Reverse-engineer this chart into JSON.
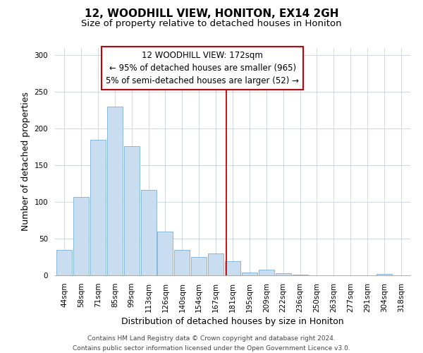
{
  "title": "12, WOODHILL VIEW, HONITON, EX14 2GH",
  "subtitle": "Size of property relative to detached houses in Honiton",
  "xlabel": "Distribution of detached houses by size in Honiton",
  "ylabel": "Number of detached properties",
  "bar_color": "#c8ddf0",
  "bar_edge_color": "#7ab0d4",
  "categories": [
    "44sqm",
    "58sqm",
    "71sqm",
    "85sqm",
    "99sqm",
    "113sqm",
    "126sqm",
    "140sqm",
    "154sqm",
    "167sqm",
    "181sqm",
    "195sqm",
    "209sqm",
    "222sqm",
    "236sqm",
    "250sqm",
    "263sqm",
    "277sqm",
    "291sqm",
    "304sqm",
    "318sqm"
  ],
  "values": [
    35,
    107,
    185,
    230,
    176,
    116,
    60,
    35,
    25,
    30,
    19,
    4,
    8,
    3,
    1,
    0,
    0,
    0,
    0,
    2,
    0
  ],
  "ylim": [
    0,
    310
  ],
  "yticks": [
    0,
    50,
    100,
    150,
    200,
    250,
    300
  ],
  "vline_x": 9.62,
  "vline_color": "#cc0000",
  "ann_line1": "12 WOODHILL VIEW: 172sqm",
  "ann_line2": "← 95% of detached houses are smaller (965)",
  "ann_line3": "5% of semi-detached houses are larger (52) →",
  "footer_line1": "Contains HM Land Registry data © Crown copyright and database right 2024.",
  "footer_line2": "Contains public sector information licensed under the Open Government Licence v3.0.",
  "title_fontsize": 11,
  "subtitle_fontsize": 9.5,
  "axis_label_fontsize": 9,
  "tick_fontsize": 7.5,
  "annotation_fontsize": 8.5,
  "footer_fontsize": 6.5,
  "background_color": "#ffffff",
  "grid_color": "#d0d8e0"
}
